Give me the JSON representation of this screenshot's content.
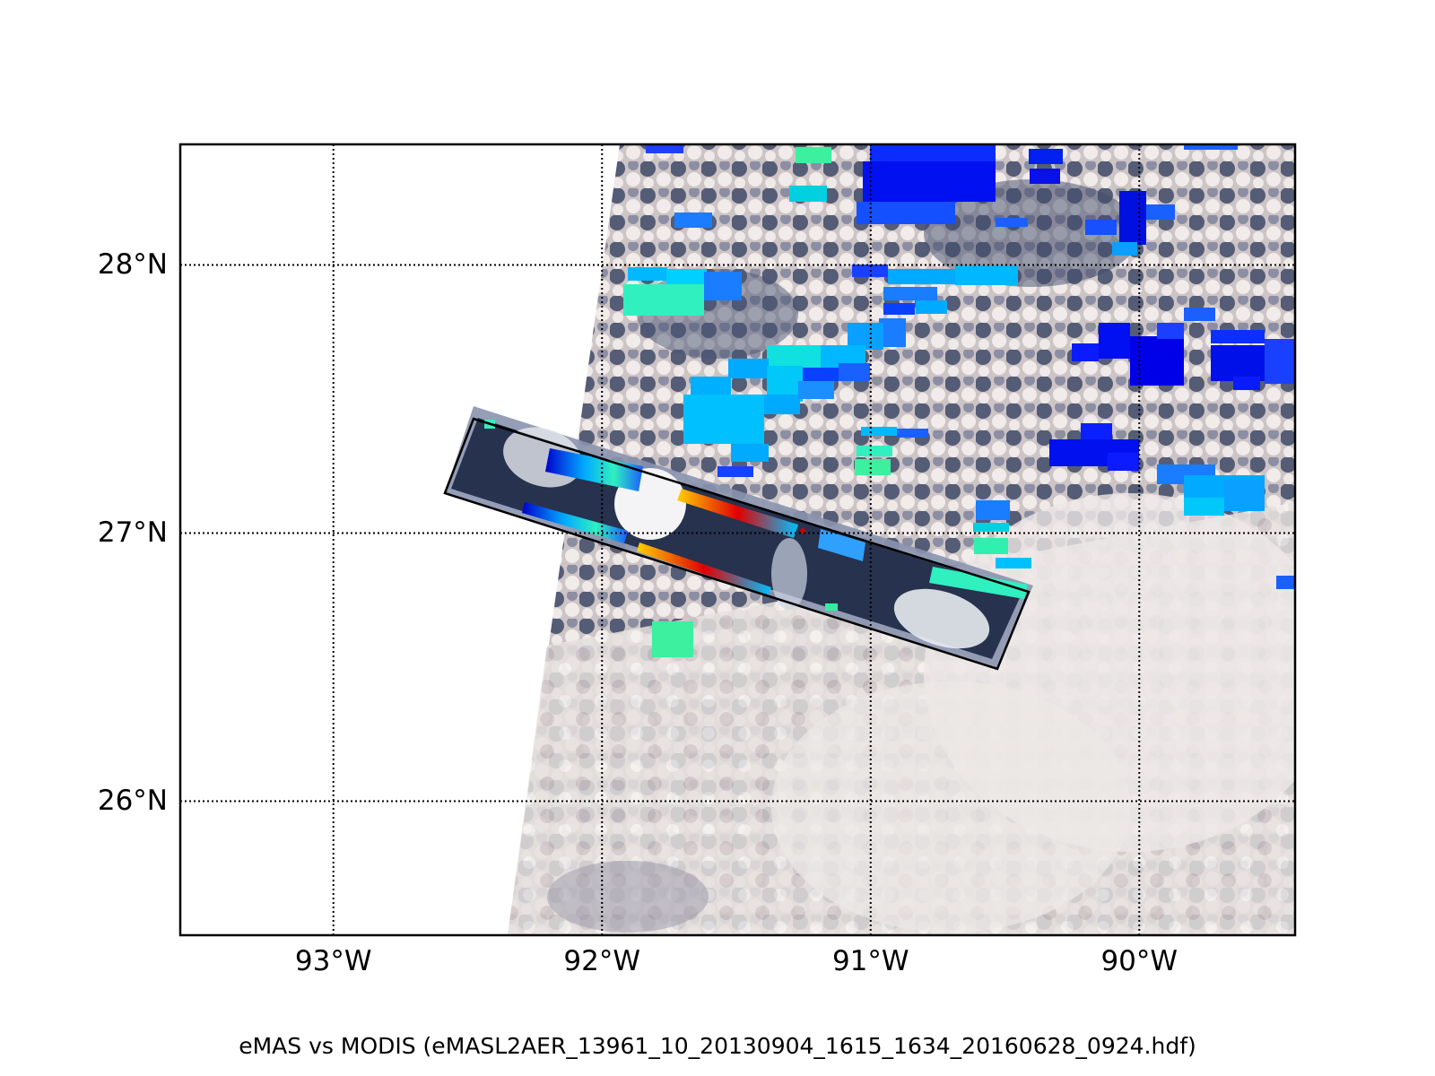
{
  "map": {
    "caption": "eMAS vs MODIS (eMASL2AER_13961_10_20130904_1615_1634_20160628_0924.hdf)",
    "lon_range": [
      -93.57,
      -89.42
    ],
    "lat_range": [
      25.5,
      28.45
    ],
    "parallels": [
      {
        "lat": 28,
        "label": "28°N"
      },
      {
        "lat": 27,
        "label": "27°N"
      },
      {
        "lat": 26,
        "label": "26°N"
      }
    ],
    "meridians": [
      {
        "lon": -93,
        "label": "93°W"
      },
      {
        "lon": -92,
        "label": "92°W"
      },
      {
        "lon": -91,
        "label": "91°W"
      },
      {
        "lon": -90,
        "label": "90°W"
      }
    ],
    "modis_swath_edge": [
      [
        -91.9,
        28.45
      ],
      [
        -92.33,
        25.5
      ]
    ],
    "emas_flight_box": [
      [
        -92.45,
        27.46
      ],
      [
        -90.43,
        26.8
      ],
      [
        -90.55,
        26.5
      ],
      [
        -92.57,
        27.15
      ]
    ],
    "colors": {
      "frame": "#000000",
      "gridline": "#000000",
      "cloud_dark": "#3e4a68",
      "cloud_light": "#e4e0de",
      "aod_low": "#3cf0a0",
      "aod_mid": "#00b4ff",
      "aod_high": "#0000ee",
      "aod_max": "#cc0000"
    }
  }
}
